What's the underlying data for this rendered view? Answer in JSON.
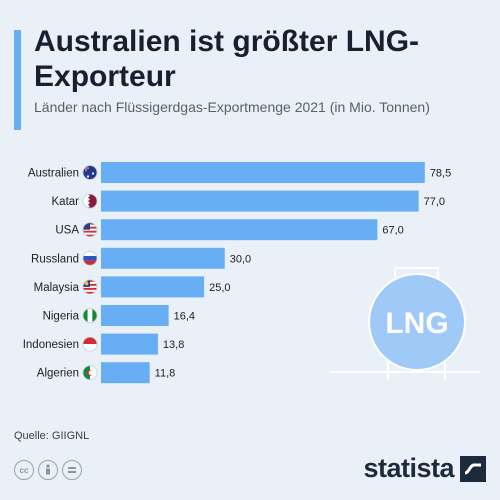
{
  "header": {
    "title": "Australien ist größter LNG-Exporteur",
    "subtitle": "Länder nach Flüssigerdgas-Exportmenge 2021 (in Mio. Tonnen)"
  },
  "illustration": {
    "label": "LNG"
  },
  "footer": {
    "source": "Quelle: GIIGNL",
    "brand": "statista",
    "license_icons": [
      "cc-icon",
      "by-icon",
      "nd-icon"
    ]
  },
  "colors": {
    "bar": "#68aef5",
    "accent": "#68aef5",
    "background": "#eaf0f8"
  },
  "chart_data": {
    "type": "bar",
    "orientation": "horizontal",
    "categories": [
      "Australien",
      "Katar",
      "USA",
      "Russland",
      "Malaysia",
      "Nigeria",
      "Indonesien",
      "Algerien"
    ],
    "values": [
      78.5,
      77.0,
      67.0,
      30.0,
      25.0,
      16.4,
      13.8,
      11.8
    ],
    "value_labels": [
      "78,5",
      "77,0",
      "67,0",
      "30,0",
      "25,0",
      "16,4",
      "13,8",
      "11,8"
    ],
    "flags": [
      "australia-flag-icon",
      "qatar-flag-icon",
      "usa-flag-icon",
      "russia-flag-icon",
      "malaysia-flag-icon",
      "nigeria-flag-icon",
      "indonesia-flag-icon",
      "algeria-flag-icon"
    ],
    "xlim": [
      0,
      80
    ],
    "grid": false,
    "legend": "none"
  }
}
